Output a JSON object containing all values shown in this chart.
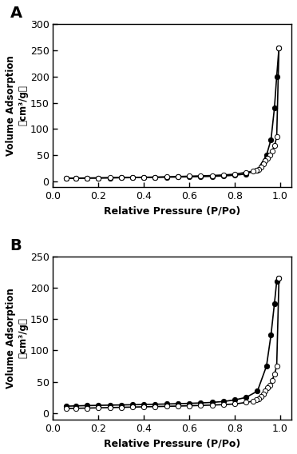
{
  "panel_A": {
    "label": "A",
    "ylim": [
      -10,
      300
    ],
    "yticks": [
      0,
      50,
      100,
      150,
      200,
      250,
      300
    ],
    "adsorption_x": [
      0.057,
      0.1,
      0.15,
      0.2,
      0.25,
      0.3,
      0.35,
      0.4,
      0.45,
      0.5,
      0.55,
      0.6,
      0.65,
      0.7,
      0.75,
      0.8,
      0.85,
      0.9,
      0.94,
      0.96,
      0.975,
      0.985,
      0.995
    ],
    "adsorption_y": [
      6.0,
      6.2,
      6.5,
      6.7,
      7.0,
      7.2,
      7.5,
      7.8,
      8.0,
      8.3,
      8.6,
      9.0,
      9.4,
      9.9,
      10.6,
      12.0,
      14.5,
      22.0,
      50.0,
      80.0,
      140.0,
      200.0,
      255.0
    ],
    "desorption_x": [
      0.995,
      0.985,
      0.975,
      0.965,
      0.955,
      0.945,
      0.935,
      0.925,
      0.915,
      0.905,
      0.895,
      0.88,
      0.85,
      0.8,
      0.75,
      0.7,
      0.65,
      0.6,
      0.55,
      0.5,
      0.45,
      0.4,
      0.35,
      0.3,
      0.25,
      0.2,
      0.15,
      0.1,
      0.057
    ],
    "desorption_y": [
      255.0,
      85.0,
      68.0,
      58.0,
      50.0,
      45.0,
      40.0,
      33.0,
      27.0,
      23.5,
      21.0,
      19.5,
      17.5,
      14.0,
      12.5,
      11.5,
      10.8,
      10.2,
      9.5,
      9.0,
      8.5,
      8.2,
      7.9,
      7.6,
      7.3,
      7.0,
      6.8,
      6.5,
      6.3
    ]
  },
  "panel_B": {
    "label": "B",
    "ylim": [
      -10,
      250
    ],
    "yticks": [
      0,
      50,
      100,
      150,
      200,
      250
    ],
    "adsorption_x": [
      0.057,
      0.1,
      0.15,
      0.2,
      0.25,
      0.3,
      0.35,
      0.4,
      0.45,
      0.5,
      0.55,
      0.6,
      0.65,
      0.7,
      0.75,
      0.8,
      0.85,
      0.9,
      0.94,
      0.96,
      0.975,
      0.985,
      0.995
    ],
    "adsorption_y": [
      11.0,
      11.5,
      12.0,
      12.3,
      12.7,
      13.0,
      13.3,
      13.7,
      14.1,
      14.5,
      15.0,
      15.5,
      16.2,
      17.0,
      18.5,
      21.0,
      25.0,
      35.0,
      75.0,
      125.0,
      175.0,
      210.0,
      215.0
    ],
    "desorption_x": [
      0.995,
      0.985,
      0.975,
      0.965,
      0.955,
      0.945,
      0.935,
      0.925,
      0.915,
      0.905,
      0.895,
      0.88,
      0.85,
      0.8,
      0.75,
      0.7,
      0.65,
      0.6,
      0.55,
      0.5,
      0.45,
      0.4,
      0.35,
      0.3,
      0.25,
      0.2,
      0.15,
      0.1,
      0.057
    ],
    "desorption_y": [
      215.0,
      75.0,
      62.0,
      52.0,
      45.0,
      40.0,
      36.0,
      31.0,
      26.0,
      23.0,
      21.0,
      19.0,
      17.0,
      14.5,
      13.5,
      12.8,
      12.2,
      11.7,
      11.2,
      10.8,
      10.4,
      10.0,
      9.6,
      9.2,
      8.8,
      8.4,
      8.0,
      7.6,
      7.2
    ]
  },
  "xlabel": "Relative Pressure (P/Po)",
  "xlim": [
    0.0,
    1.05
  ],
  "xticks": [
    0.0,
    0.2,
    0.4,
    0.6,
    0.8,
    1.0
  ],
  "line_color": "black",
  "adsorption_marker_fc": "black",
  "desorption_marker_fc": "white",
  "marker_size": 4.5,
  "line_width": 1.2
}
